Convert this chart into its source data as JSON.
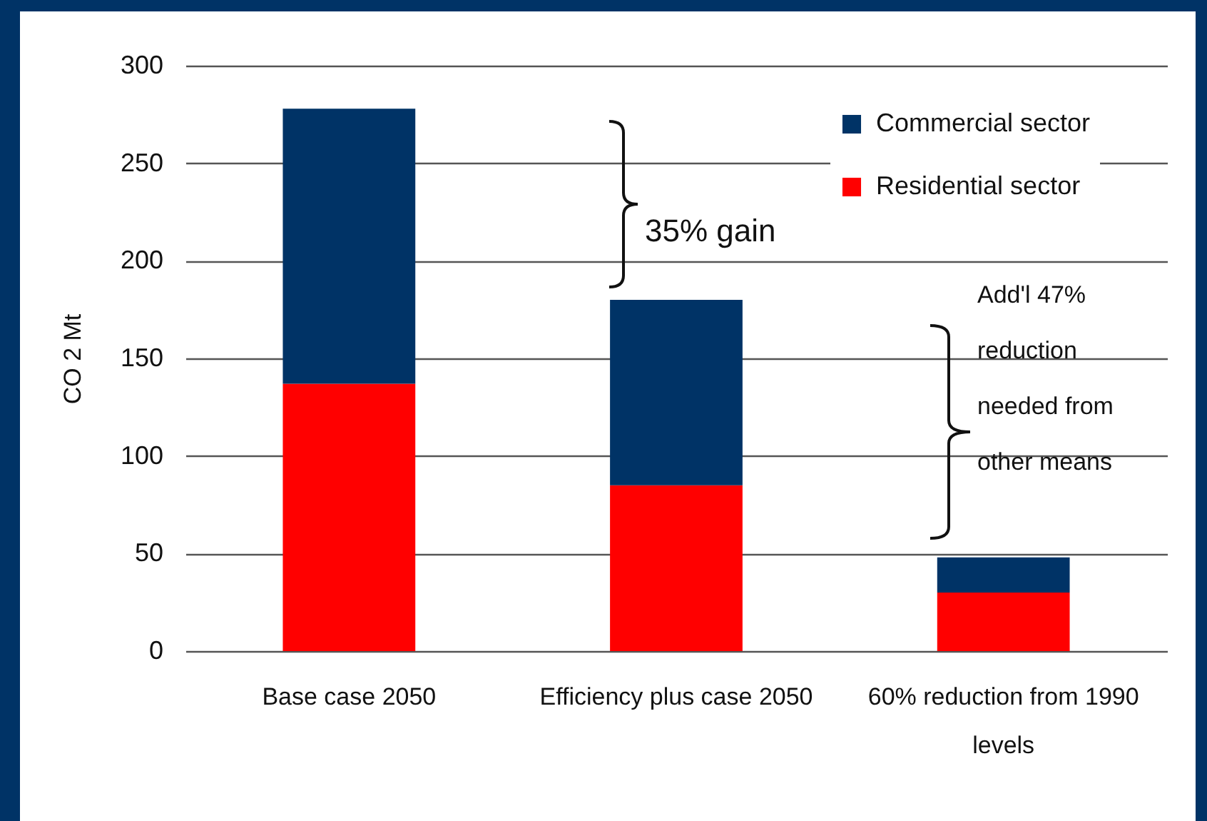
{
  "chart_data": {
    "type": "bar",
    "ylabel": "CO 2 Mt",
    "categories": [
      "Base case 2050",
      "Efficiency plus case 2050",
      "60% reduction from 1990 levels"
    ],
    "series": [
      {
        "name": "Residential sector",
        "color": "#ff0000",
        "values": [
          137,
          85,
          30
        ]
      },
      {
        "name": "Commercial sector",
        "color": "#003366",
        "values": [
          141,
          95,
          18
        ]
      }
    ],
    "stacked": true,
    "ylim": [
      0,
      300
    ],
    "yticks": [
      0,
      50,
      100,
      150,
      200,
      250,
      300
    ],
    "grid": "y",
    "legend": "top right",
    "annotations": [
      "35% gain",
      "Add'l 47% reduction needed from other means"
    ]
  }
}
